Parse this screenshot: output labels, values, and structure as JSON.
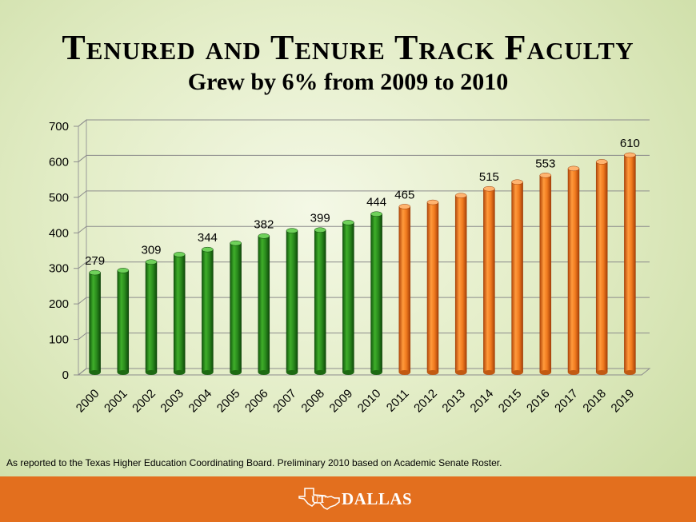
{
  "header": {
    "title": "Tenured and Tenure Track Faculty",
    "subtitle": "Grew by 6% from 2009 to 2010"
  },
  "chart_data": {
    "type": "bar",
    "title": "Tenured and Tenure Track Faculty",
    "subtitle": "Grew by 6% from 2009 to 2010",
    "xlabel": "",
    "ylabel": "",
    "ylim": [
      0,
      700
    ],
    "yticks": [
      0,
      100,
      200,
      300,
      400,
      500,
      600,
      700
    ],
    "grid": true,
    "legend": "none",
    "categories": [
      "2000",
      "2001",
      "2002",
      "2003",
      "2004",
      "2005",
      "2006",
      "2007",
      "2008",
      "2009",
      "2010",
      "2011",
      "2012",
      "2013",
      "2014",
      "2015",
      "2016",
      "2017",
      "2018",
      "2019"
    ],
    "values": [
      279,
      285,
      309,
      330,
      344,
      362,
      382,
      397,
      399,
      420,
      444,
      465,
      477,
      496,
      515,
      534,
      553,
      572,
      591,
      610
    ],
    "labeled_values": {
      "2000": "279",
      "2002": "309",
      "2004": "344",
      "2006": "382",
      "2008": "399",
      "2010": "444",
      "2011": "465",
      "2014": "515",
      "2016": "553",
      "2019": "610"
    },
    "colors": {
      "actual": "#2e8b1e",
      "projected": "#f07a1e"
    },
    "last_actual_year": "2010"
  },
  "footnote": "As reported to the Texas Higher Education Coordinating Board.  Preliminary 2010 based on Academic Senate Roster.",
  "footer": {
    "logo_prefix": "UT",
    "logo_text": "DALLAS",
    "logo_icon": "texas-state-icon",
    "background": "#e36f1e"
  }
}
